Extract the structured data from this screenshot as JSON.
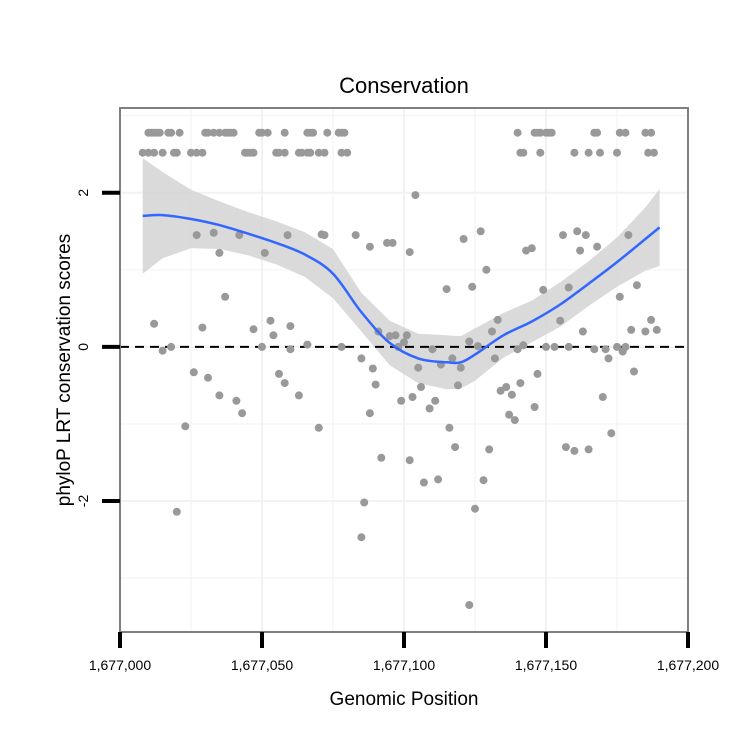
{
  "chart_data": {
    "type": "scatter",
    "title": "Conservation",
    "xlabel": "Genomic Position",
    "ylabel": "phyloP LRT conservation scores",
    "xlim": [
      1677000,
      1677200
    ],
    "ylim": [
      -3.7,
      3.1
    ],
    "x_ticks": [
      1677000,
      1677050,
      1677100,
      1677150,
      1677200
    ],
    "x_tick_labels": [
      "1,677,000",
      "1,677,050",
      "1,677,100",
      "1,677,150",
      "1,677,200"
    ],
    "y_ticks": [
      -2,
      0,
      2
    ],
    "y_tick_labels": [
      "-2",
      "0",
      "2"
    ],
    "reference_line": {
      "y": 0,
      "style": "dashed"
    },
    "grid": true,
    "colors": {
      "points": "#999999",
      "smooth": "#3366ff",
      "band": "#d3d3d3",
      "border": "#7f7f7f"
    },
    "smooth": {
      "x": [
        1677008,
        1677015,
        1677025,
        1677035,
        1677045,
        1677055,
        1677065,
        1677075,
        1677085,
        1677095,
        1677105,
        1677115,
        1677120,
        1677125,
        1677135,
        1677145,
        1677155,
        1677165,
        1677175,
        1677185,
        1677190
      ],
      "y": [
        1.7,
        1.71,
        1.66,
        1.58,
        1.47,
        1.35,
        1.2,
        0.95,
        0.45,
        0.05,
        -0.15,
        -0.2,
        -0.2,
        -0.1,
        0.15,
        0.33,
        0.55,
        0.82,
        1.1,
        1.4,
        1.55
      ],
      "lower": [
        0.95,
        1.15,
        1.28,
        1.27,
        1.19,
        1.07,
        0.91,
        0.63,
        0.2,
        -0.24,
        -0.47,
        -0.55,
        -0.54,
        -0.44,
        -0.14,
        0.06,
        0.26,
        0.53,
        0.78,
        0.99,
        1.05
      ],
      "upper": [
        2.45,
        2.27,
        2.04,
        1.89,
        1.75,
        1.63,
        1.49,
        1.27,
        0.7,
        0.34,
        0.17,
        0.15,
        0.14,
        0.24,
        0.44,
        0.6,
        0.84,
        1.11,
        1.42,
        1.81,
        2.05
      ]
    },
    "points": [
      [
        1677008,
        2.52
      ],
      [
        1677010,
        2.52
      ],
      [
        1677012,
        2.52
      ],
      [
        1677015,
        2.52
      ],
      [
        1677019,
        2.52
      ],
      [
        1677020,
        2.52
      ],
      [
        1677025,
        2.52
      ],
      [
        1677027,
        2.52
      ],
      [
        1677029,
        2.52
      ],
      [
        1677044,
        2.52
      ],
      [
        1677045,
        2.52
      ],
      [
        1677046,
        2.52
      ],
      [
        1677047,
        2.52
      ],
      [
        1677055,
        2.52
      ],
      [
        1677056,
        2.52
      ],
      [
        1677058,
        2.52
      ],
      [
        1677063,
        2.52
      ],
      [
        1677064,
        2.52
      ],
      [
        1677066,
        2.52
      ],
      [
        1677067,
        2.52
      ],
      [
        1677070,
        2.52
      ],
      [
        1677072,
        2.52
      ],
      [
        1677078,
        2.52
      ],
      [
        1677080,
        2.52
      ],
      [
        1677141,
        2.52
      ],
      [
        1677142,
        2.52
      ],
      [
        1677148,
        2.52
      ],
      [
        1677160,
        2.52
      ],
      [
        1677165,
        2.52
      ],
      [
        1677169,
        2.52
      ],
      [
        1677175,
        2.52
      ],
      [
        1677186,
        2.52
      ],
      [
        1677188,
        2.52
      ],
      [
        1677010,
        2.78
      ],
      [
        1677011,
        2.78
      ],
      [
        1677012,
        2.78
      ],
      [
        1677013,
        2.78
      ],
      [
        1677014,
        2.78
      ],
      [
        1677017,
        2.78
      ],
      [
        1677018,
        2.78
      ],
      [
        1677021,
        2.78
      ],
      [
        1677030,
        2.78
      ],
      [
        1677031,
        2.78
      ],
      [
        1677033,
        2.78
      ],
      [
        1677035,
        2.78
      ],
      [
        1677037,
        2.78
      ],
      [
        1677038,
        2.78
      ],
      [
        1677039,
        2.78
      ],
      [
        1677040,
        2.78
      ],
      [
        1677049,
        2.78
      ],
      [
        1677050,
        2.78
      ],
      [
        1677052,
        2.78
      ],
      [
        1677058,
        2.78
      ],
      [
        1677066,
        2.78
      ],
      [
        1677067,
        2.78
      ],
      [
        1677068,
        2.78
      ],
      [
        1677073,
        2.78
      ],
      [
        1677077,
        2.78
      ],
      [
        1677078,
        2.78
      ],
      [
        1677079,
        2.78
      ],
      [
        1677140,
        2.78
      ],
      [
        1677146,
        2.78
      ],
      [
        1677147,
        2.78
      ],
      [
        1677148,
        2.78
      ],
      [
        1677150,
        2.78
      ],
      [
        1677151,
        2.78
      ],
      [
        1677152,
        2.78
      ],
      [
        1677167,
        2.78
      ],
      [
        1677168,
        2.78
      ],
      [
        1677176,
        2.78
      ],
      [
        1677178,
        2.78
      ],
      [
        1677185,
        2.78
      ],
      [
        1677187,
        2.78
      ],
      [
        1677012,
        0.3
      ],
      [
        1677015,
        -0.05
      ],
      [
        1677018,
        0.0
      ],
      [
        1677020,
        -2.14
      ],
      [
        1677023,
        -1.03
      ],
      [
        1677026,
        -0.33
      ],
      [
        1677027,
        1.45
      ],
      [
        1677029,
        0.25
      ],
      [
        1677031,
        -0.4
      ],
      [
        1677033,
        1.48
      ],
      [
        1677035,
        -0.63
      ],
      [
        1677035,
        1.22
      ],
      [
        1677037,
        0.65
      ],
      [
        1677041,
        -0.7
      ],
      [
        1677042,
        1.45
      ],
      [
        1677043,
        -0.86
      ],
      [
        1677047,
        0.23
      ],
      [
        1677050,
        0.0
      ],
      [
        1677051,
        1.22
      ],
      [
        1677053,
        0.34
      ],
      [
        1677054,
        0.15
      ],
      [
        1677056,
        -0.35
      ],
      [
        1677058,
        -0.47
      ],
      [
        1677059,
        1.45
      ],
      [
        1677060,
        0.27
      ],
      [
        1677060,
        -0.03
      ],
      [
        1677063,
        -0.63
      ],
      [
        1677066,
        0.03
      ],
      [
        1677070,
        -1.05
      ],
      [
        1677071,
        1.46
      ],
      [
        1677072,
        1.45
      ],
      [
        1677078,
        0.0
      ],
      [
        1677083,
        1.45
      ],
      [
        1677085,
        -0.15
      ],
      [
        1677085,
        -2.47
      ],
      [
        1677086,
        -2.02
      ],
      [
        1677088,
        1.3
      ],
      [
        1677088,
        -0.86
      ],
      [
        1677089,
        -0.28
      ],
      [
        1677090,
        -0.49
      ],
      [
        1677091,
        0.2
      ],
      [
        1677092,
        -1.44
      ],
      [
        1677094,
        1.35
      ],
      [
        1677095,
        0.14
      ],
      [
        1677096,
        1.35
      ],
      [
        1677097,
        0.15
      ],
      [
        1677098,
        0.0
      ],
      [
        1677099,
        -0.7
      ],
      [
        1677100,
        0.06
      ],
      [
        1677101,
        0.15
      ],
      [
        1677102,
        1.23
      ],
      [
        1677102,
        -1.47
      ],
      [
        1677103,
        -0.65
      ],
      [
        1677104,
        1.97
      ],
      [
        1677105,
        -0.27
      ],
      [
        1677106,
        -0.52
      ],
      [
        1677107,
        -1.76
      ],
      [
        1677109,
        -0.8
      ],
      [
        1677110,
        -0.03
      ],
      [
        1677111,
        -0.7
      ],
      [
        1677112,
        -1.72
      ],
      [
        1677113,
        -0.23
      ],
      [
        1677115,
        0.75
      ],
      [
        1677116,
        -1.05
      ],
      [
        1677117,
        -0.15
      ],
      [
        1677118,
        -1.3
      ],
      [
        1677119,
        -0.5
      ],
      [
        1677120,
        -0.27
      ],
      [
        1677121,
        1.4
      ],
      [
        1677123,
        0.07
      ],
      [
        1677123,
        -3.35
      ],
      [
        1677124,
        0.78
      ],
      [
        1677125,
        -2.1
      ],
      [
        1677126,
        0.01
      ],
      [
        1677127,
        1.5
      ],
      [
        1677128,
        -1.73
      ],
      [
        1677129,
        1.0
      ],
      [
        1677130,
        -1.33
      ],
      [
        1677131,
        0.2
      ],
      [
        1677132,
        -0.15
      ],
      [
        1677133,
        0.35
      ],
      [
        1677134,
        -0.57
      ],
      [
        1677136,
        -0.52
      ],
      [
        1677137,
        -0.88
      ],
      [
        1677138,
        -0.62
      ],
      [
        1677139,
        -0.95
      ],
      [
        1677140,
        -0.03
      ],
      [
        1677141,
        -0.47
      ],
      [
        1677142,
        0.02
      ],
      [
        1677143,
        1.25
      ],
      [
        1677145,
        1.28
      ],
      [
        1677146,
        -0.78
      ],
      [
        1677147,
        -0.35
      ],
      [
        1677149,
        0.74
      ],
      [
        1677150,
        0.0
      ],
      [
        1677153,
        0.0
      ],
      [
        1677155,
        0.34
      ],
      [
        1677156,
        1.45
      ],
      [
        1677157,
        -1.3
      ],
      [
        1677158,
        0.0
      ],
      [
        1677158,
        0.77
      ],
      [
        1677160,
        -1.35
      ],
      [
        1677161,
        1.5
      ],
      [
        1677162,
        1.25
      ],
      [
        1677163,
        0.2
      ],
      [
        1677164,
        1.45
      ],
      [
        1677165,
        -1.33
      ],
      [
        1677167,
        -0.03
      ],
      [
        1677168,
        1.3
      ],
      [
        1677170,
        -0.65
      ],
      [
        1677171,
        -0.03
      ],
      [
        1677172,
        -0.15
      ],
      [
        1677173,
        -1.12
      ],
      [
        1677175,
        0.0
      ],
      [
        1677176,
        0.65
      ],
      [
        1677177,
        -0.06
      ],
      [
        1677178,
        0.0
      ],
      [
        1677179,
        1.45
      ],
      [
        1677180,
        0.22
      ],
      [
        1677181,
        -0.32
      ],
      [
        1677182,
        0.8
      ],
      [
        1677185,
        0.2
      ],
      [
        1677187,
        0.35
      ],
      [
        1677189,
        0.22
      ]
    ]
  }
}
